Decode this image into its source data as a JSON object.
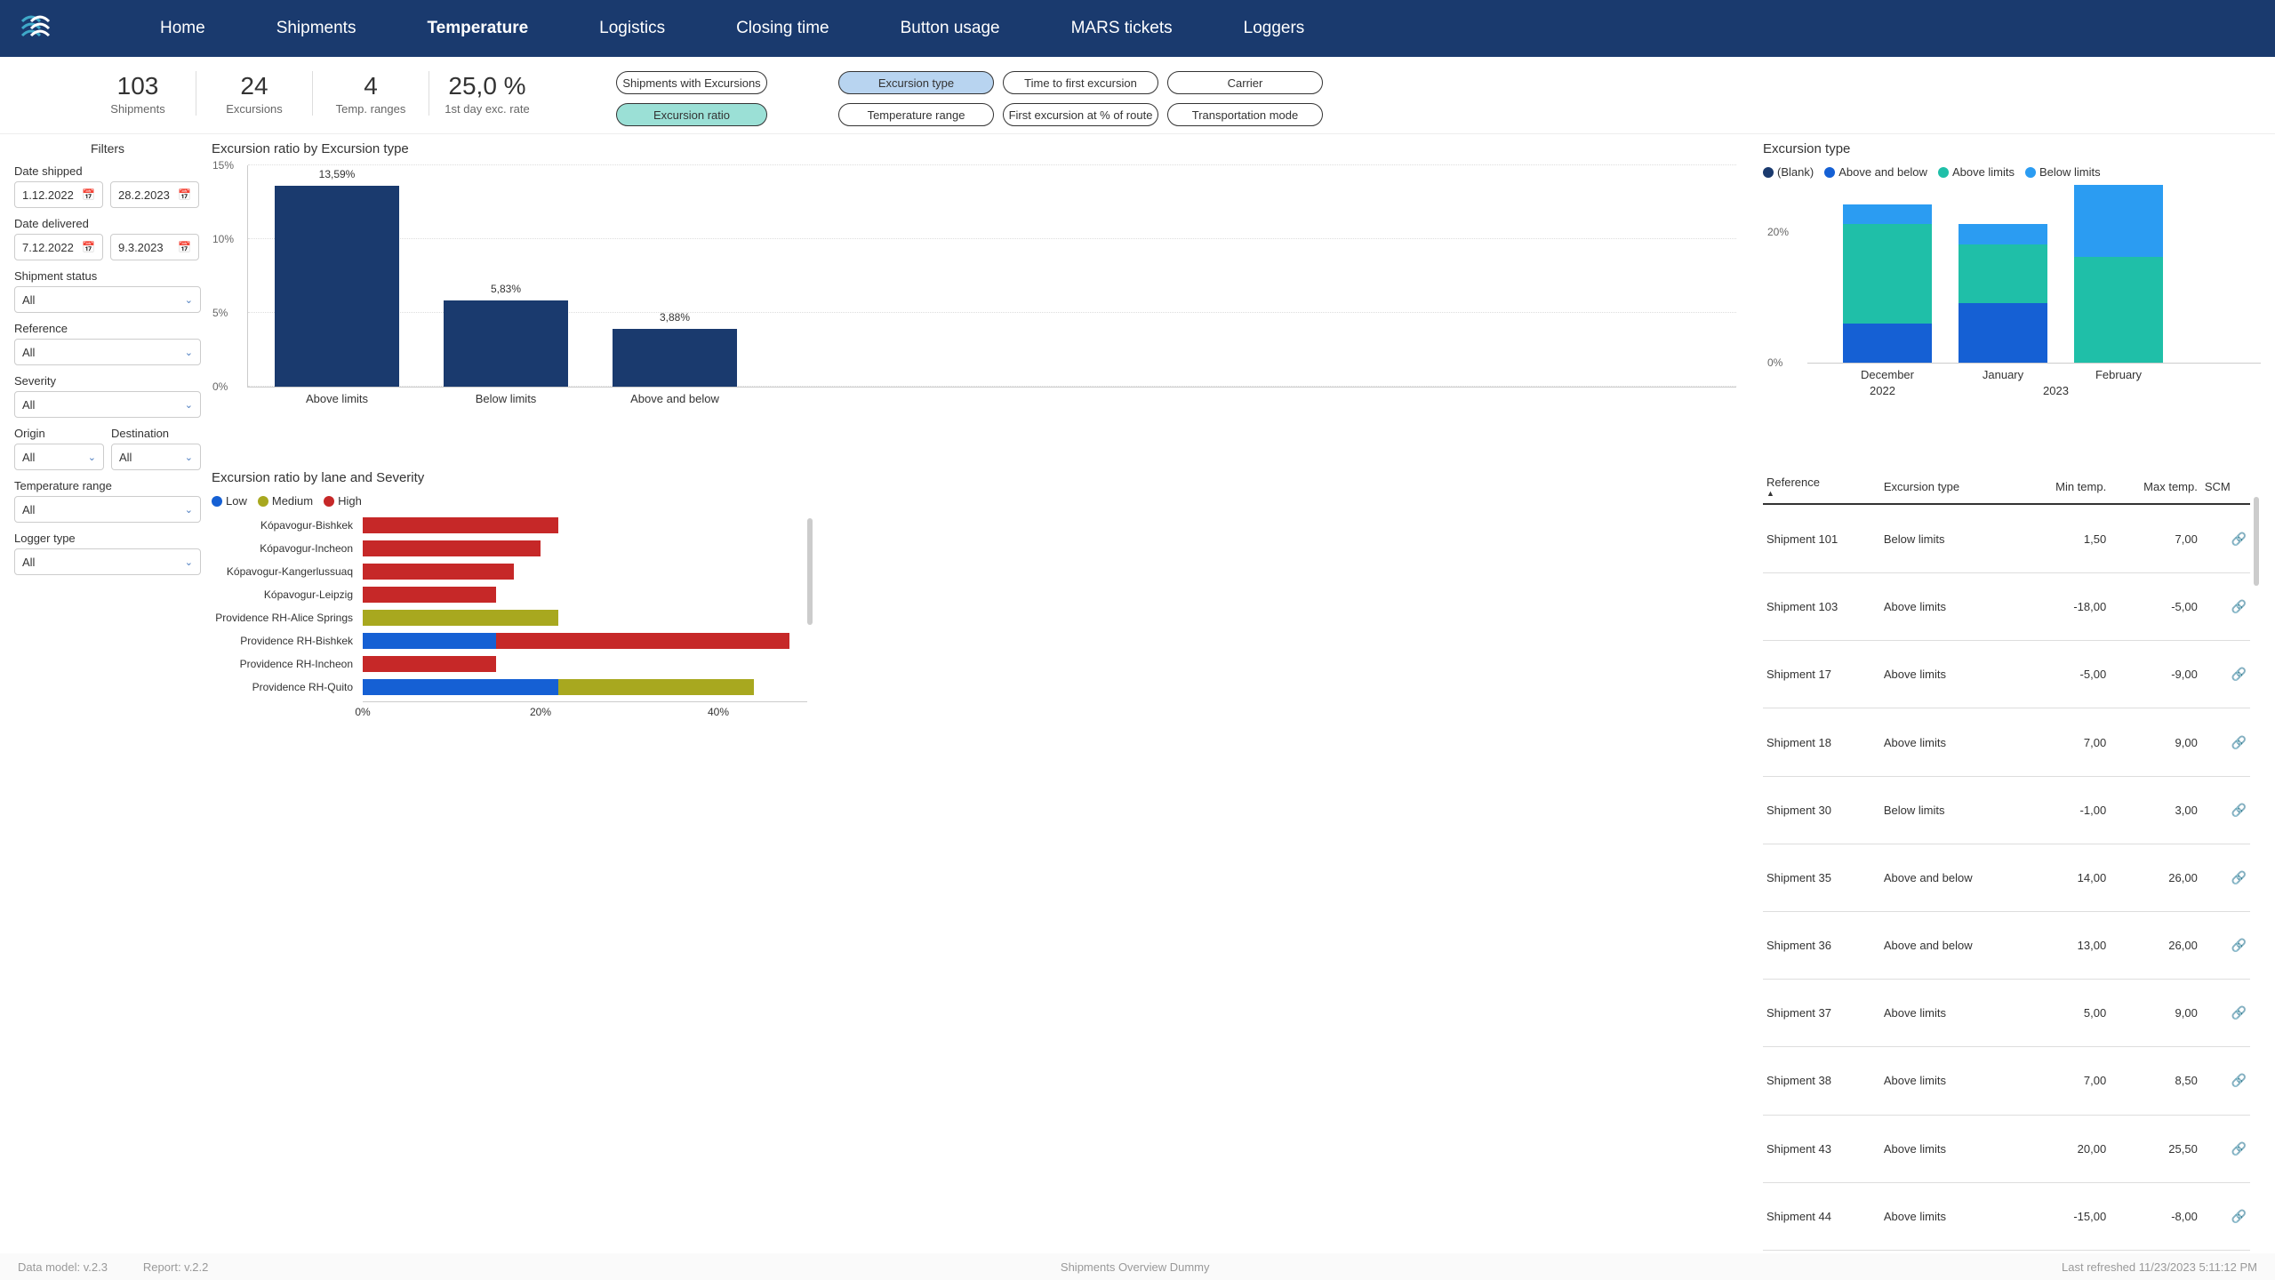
{
  "nav": {
    "items": [
      "Home",
      "Shipments",
      "Temperature",
      "Logistics",
      "Closing time",
      "Button usage",
      "MARS tickets",
      "Loggers"
    ],
    "active_index": 2
  },
  "kpis": [
    {
      "value": "103",
      "label": "Shipments"
    },
    {
      "value": "24",
      "label": "Excursions"
    },
    {
      "value": "4",
      "label": "Temp. ranges"
    },
    {
      "value": "25,0 %",
      "label": "1st day exc. rate"
    }
  ],
  "selectors": {
    "left": [
      {
        "label": "Shipments with Excursions",
        "active": false
      },
      {
        "label": "Excursion ratio",
        "active": true
      }
    ],
    "right": [
      {
        "label": "Excursion type",
        "active": true
      },
      {
        "label": "Time to first excursion",
        "active": false
      },
      {
        "label": "Carrier",
        "active": false
      },
      {
        "label": "Temperature range",
        "active": false
      },
      {
        "label": "First excursion at % of route",
        "active": false
      },
      {
        "label": "Transportation mode",
        "active": false
      }
    ]
  },
  "filters": {
    "title": "Filters",
    "date_shipped_label": "Date shipped",
    "date_shipped_from": "1.12.2022",
    "date_shipped_to": "28.2.2023",
    "date_delivered_label": "Date delivered",
    "date_delivered_from": "7.12.2022",
    "date_delivered_to": "9.3.2023",
    "shipment_status_label": "Shipment status",
    "shipment_status_value": "All",
    "reference_label": "Reference",
    "reference_value": "All",
    "severity_label": "Severity",
    "severity_value": "All",
    "origin_label": "Origin",
    "origin_value": "All",
    "destination_label": "Destination",
    "destination_value": "All",
    "temp_range_label": "Temperature range",
    "temp_range_value": "All",
    "logger_type_label": "Logger type",
    "logger_type_value": "All"
  },
  "chart1": {
    "title": "Excursion ratio by Excursion type",
    "y_ticks": [
      0,
      5,
      10,
      15
    ],
    "y_max": 15,
    "bar_color": "#1a3a6e",
    "bars": [
      {
        "label": "Above limits",
        "value": 13.59,
        "text": "13,59%"
      },
      {
        "label": "Below limits",
        "value": 5.83,
        "text": "5,83%"
      },
      {
        "label": "Above and below",
        "value": 3.88,
        "text": "3,88%"
      }
    ]
  },
  "chart2": {
    "title": "Excursion type",
    "legend": [
      {
        "label": "(Blank)",
        "color": "#1a3a6e"
      },
      {
        "label": "Above and below",
        "color": "#1560d4"
      },
      {
        "label": "Above limits",
        "color": "#1fbfa8"
      },
      {
        "label": "Below limits",
        "color": "#2b9cf2"
      }
    ],
    "y_ticks": [
      0,
      20
    ],
    "y_max": 27,
    "columns": [
      {
        "x_label": "December",
        "segments": [
          {
            "color": "#1560d4",
            "value": 6
          },
          {
            "color": "#1fbfa8",
            "value": 15
          },
          {
            "color": "#2b9cf2",
            "value": 3
          }
        ]
      },
      {
        "x_label": "January",
        "segments": [
          {
            "color": "#1560d4",
            "value": 9
          },
          {
            "color": "#1fbfa8",
            "value": 9
          },
          {
            "color": "#2b9cf2",
            "value": 3
          }
        ]
      },
      {
        "x_label": "February",
        "segments": [
          {
            "color": "#1fbfa8",
            "value": 16
          },
          {
            "color": "#2b9cf2",
            "value": 11
          }
        ]
      }
    ],
    "year_labels": [
      {
        "text": "2022",
        "col": 0
      },
      {
        "text": "2023",
        "col_span_start": 1
      }
    ]
  },
  "chart3": {
    "title": "Excursion ratio by lane and Severity",
    "legend": [
      {
        "label": "Low",
        "color": "#1560d4"
      },
      {
        "label": "Medium",
        "color": "#a8a81f"
      },
      {
        "label": "High",
        "color": "#c62828"
      }
    ],
    "x_max": 50,
    "x_ticks": [
      0,
      20,
      40
    ],
    "rows": [
      {
        "label": "Kópavogur-Bishkek",
        "segments": [
          {
            "color": "#c62828",
            "value": 22
          }
        ]
      },
      {
        "label": "Kópavogur-Incheon",
        "segments": [
          {
            "color": "#c62828",
            "value": 20
          }
        ]
      },
      {
        "label": "Kópavogur-Kangerlussuaq",
        "segments": [
          {
            "color": "#c62828",
            "value": 17
          }
        ]
      },
      {
        "label": "Kópavogur-Leipzig",
        "segments": [
          {
            "color": "#c62828",
            "value": 15
          }
        ]
      },
      {
        "label": "Providence RH-Alice Springs",
        "segments": [
          {
            "color": "#a8a81f",
            "value": 22
          }
        ]
      },
      {
        "label": "Providence RH-Bishkek",
        "segments": [
          {
            "color": "#1560d4",
            "value": 15
          },
          {
            "color": "#c62828",
            "value": 33
          }
        ]
      },
      {
        "label": "Providence RH-Incheon",
        "segments": [
          {
            "color": "#c62828",
            "value": 15
          }
        ]
      },
      {
        "label": "Providence RH-Quito",
        "segments": [
          {
            "color": "#1560d4",
            "value": 22
          },
          {
            "color": "#a8a81f",
            "value": 22
          }
        ]
      }
    ]
  },
  "table": {
    "columns": [
      "Reference",
      "Excursion type",
      "Min temp.",
      "Max temp.",
      "SCM"
    ],
    "rows": [
      [
        "Shipment 101",
        "Below limits",
        "1,50",
        "7,00"
      ],
      [
        "Shipment 103",
        "Above limits",
        "-18,00",
        "-5,00"
      ],
      [
        "Shipment 17",
        "Above limits",
        "-5,00",
        "-9,00"
      ],
      [
        "Shipment 18",
        "Above limits",
        "7,00",
        "9,00"
      ],
      [
        "Shipment 30",
        "Below limits",
        "-1,00",
        "3,00"
      ],
      [
        "Shipment 35",
        "Above and below",
        "14,00",
        "26,00"
      ],
      [
        "Shipment 36",
        "Above and below",
        "13,00",
        "26,00"
      ],
      [
        "Shipment 37",
        "Above limits",
        "5,00",
        "9,00"
      ],
      [
        "Shipment 38",
        "Above limits",
        "7,00",
        "8,50"
      ],
      [
        "Shipment 43",
        "Above limits",
        "20,00",
        "25,50"
      ],
      [
        "Shipment 44",
        "Above limits",
        "-15,00",
        "-8,00"
      ]
    ]
  },
  "footer": {
    "left1": "Data model: v.2.3",
    "left2": "Report: v.2.2",
    "center": "Shipments Overview Dummy",
    "right": "Last refreshed 11/23/2023 5:11:12 PM"
  }
}
